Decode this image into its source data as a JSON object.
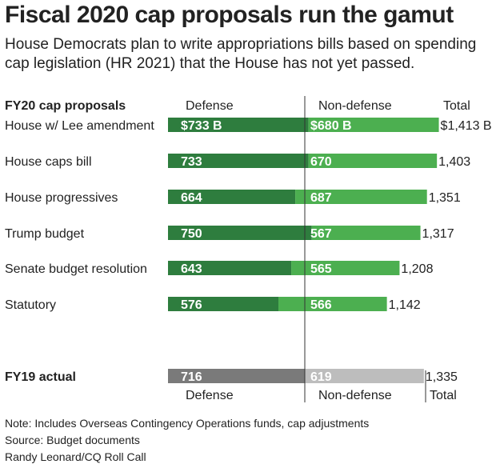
{
  "title": "Fiscal 2020 cap proposals run the gamut",
  "subtitle": "House Democrats plan to write appropriations bills based on spending cap legislation (HR 2021) that the House has not yet passed.",
  "headers": {
    "proposals": "FY20 cap proposals",
    "defense": "Defense",
    "nondefense": "Non-defense",
    "total": "Total"
  },
  "footer_headers": {
    "defense": "Defense",
    "nondefense": "Non-defense",
    "total": "Total"
  },
  "notes": [
    "Note: Includes Overseas Contingency Operations funds, cap adjustments",
    "Source: Budget documents",
    "Randy Leonard/CQ Roll Call"
  ],
  "colors": {
    "defense": "#2e7d3e",
    "nondefense": "#4caf50",
    "defense_fy19": "#7a7a7a",
    "nondefense_fy19": "#bdbdbd"
  },
  "chart_data": {
    "type": "bar",
    "orientation": "horizontal-stacked",
    "series_names": [
      "Defense",
      "Non-defense"
    ],
    "units": "billions of dollars",
    "rows": [
      {
        "label": "House w/ Lee amendment",
        "defense": 733,
        "nondefense": 680,
        "total": 1413,
        "defense_text": "$733 B",
        "nondefense_text": "$680 B",
        "total_text": "$1,413 B",
        "bold": false
      },
      {
        "label": "House caps bill",
        "defense": 733,
        "nondefense": 670,
        "total": 1403,
        "defense_text": "733",
        "nondefense_text": "670",
        "total_text": "1,403",
        "bold": false
      },
      {
        "label": "House progressives",
        "defense": 664,
        "nondefense": 687,
        "total": 1351,
        "defense_text": "664",
        "nondefense_text": "687",
        "total_text": "1,351",
        "bold": false
      },
      {
        "label": "Trump budget",
        "defense": 750,
        "nondefense": 567,
        "total": 1317,
        "defense_text": "750",
        "nondefense_text": "567",
        "total_text": "1,317",
        "bold": false
      },
      {
        "label": "Senate budget resolution",
        "defense": 643,
        "nondefense": 565,
        "total": 1208,
        "defense_text": "643",
        "nondefense_text": "565",
        "total_text": "1,208",
        "bold": false
      },
      {
        "label": "Statutory",
        "defense": 576,
        "nondefense": 566,
        "total": 1142,
        "defense_text": "576",
        "nondefense_text": "566",
        "total_text": "1,142",
        "bold": false
      }
    ],
    "comparison": {
      "label": "FY19 actual",
      "defense": 716,
      "nondefense": 619,
      "total": 1335,
      "defense_text": "716",
      "nondefense_text": "619",
      "total_text": "1,335",
      "bold": true
    }
  }
}
